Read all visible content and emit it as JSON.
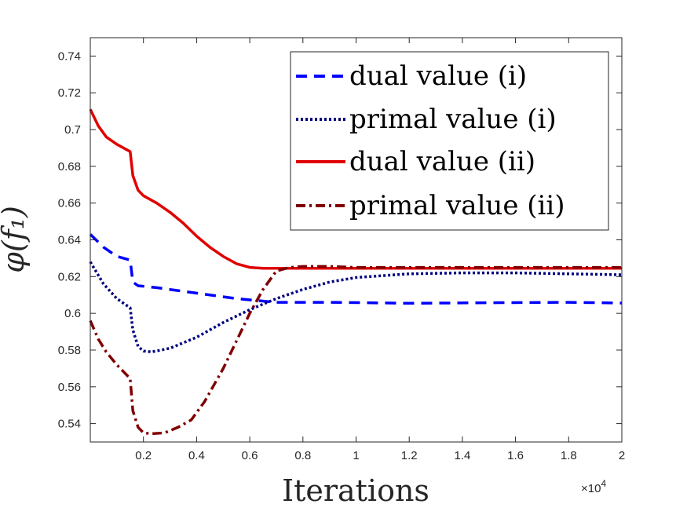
{
  "chart_data": {
    "type": "line",
    "title": "",
    "xlabel": "Iterations",
    "ylabel": "φ(f₁)",
    "x_exponent_label": "×10",
    "x_exponent_power": "4",
    "xlim": [
      0,
      2
    ],
    "ylim": [
      0.53,
      0.75
    ],
    "xticks": [
      0.2,
      0.4,
      0.6,
      0.8,
      1,
      1.2,
      1.4,
      1.6,
      1.8,
      2
    ],
    "xtick_labels": [
      "0.2",
      "0.4",
      "0.6",
      "0.8",
      "1",
      "1.2",
      "1.4",
      "1.6",
      "1.8",
      "2"
    ],
    "yticks": [
      0.54,
      0.56,
      0.58,
      0.6,
      0.62,
      0.64,
      0.66,
      0.68,
      0.7,
      0.72,
      0.74
    ],
    "ytick_labels": [
      "0.54",
      "0.56",
      "0.58",
      "0.6",
      "0.62",
      "0.64",
      "0.66",
      "0.68",
      "0.7",
      "0.72",
      "0.74"
    ],
    "legend_position": "top-right",
    "grid": false,
    "series": [
      {
        "name": "dual value (i)",
        "color": "#0000ff",
        "style": "dashed",
        "x": [
          0,
          0.05,
          0.1,
          0.15,
          0.16,
          0.18,
          0.25,
          0.4,
          0.55,
          0.7,
          0.9,
          1.2,
          1.5,
          1.8,
          2.0
        ],
        "y": [
          0.643,
          0.636,
          0.631,
          0.629,
          0.617,
          0.615,
          0.614,
          0.611,
          0.608,
          0.606,
          0.606,
          0.6055,
          0.6058,
          0.606,
          0.6056
        ]
      },
      {
        "name": "primal value (i)",
        "color": "#000080",
        "style": "dotted",
        "x": [
          0,
          0.05,
          0.1,
          0.15,
          0.16,
          0.18,
          0.2,
          0.23,
          0.3,
          0.4,
          0.5,
          0.6,
          0.7,
          0.8,
          0.9,
          1.0,
          1.2,
          1.4,
          1.6,
          1.8,
          2.0
        ],
        "y": [
          0.628,
          0.616,
          0.608,
          0.603,
          0.591,
          0.582,
          0.5795,
          0.579,
          0.581,
          0.587,
          0.595,
          0.602,
          0.608,
          0.613,
          0.617,
          0.6195,
          0.6215,
          0.622,
          0.622,
          0.6215,
          0.621
        ]
      },
      {
        "name": "dual value (ii)",
        "color": "#e00000",
        "style": "solid",
        "x": [
          0,
          0.03,
          0.06,
          0.1,
          0.15,
          0.16,
          0.18,
          0.2,
          0.25,
          0.3,
          0.35,
          0.4,
          0.45,
          0.5,
          0.55,
          0.6,
          0.65,
          0.7,
          0.8,
          1.0,
          1.5,
          2.0
        ],
        "y": [
          0.711,
          0.702,
          0.696,
          0.692,
          0.688,
          0.675,
          0.667,
          0.664,
          0.66,
          0.655,
          0.649,
          0.642,
          0.636,
          0.631,
          0.627,
          0.625,
          0.6245,
          0.6245,
          0.6245,
          0.6245,
          0.6245,
          0.6245
        ]
      },
      {
        "name": "primal value (ii)",
        "color": "#800000",
        "style": "dashdot",
        "x": [
          0,
          0.03,
          0.06,
          0.1,
          0.15,
          0.16,
          0.18,
          0.2,
          0.23,
          0.28,
          0.33,
          0.38,
          0.43,
          0.5,
          0.55,
          0.6,
          0.65,
          0.7,
          0.75,
          0.8,
          0.9,
          1.0,
          1.2,
          1.5,
          2.0
        ],
        "y": [
          0.596,
          0.586,
          0.579,
          0.572,
          0.5645,
          0.547,
          0.538,
          0.535,
          0.5345,
          0.535,
          0.538,
          0.542,
          0.552,
          0.57,
          0.585,
          0.6,
          0.613,
          0.623,
          0.625,
          0.6255,
          0.6255,
          0.625,
          0.625,
          0.625,
          0.625
        ]
      }
    ]
  }
}
